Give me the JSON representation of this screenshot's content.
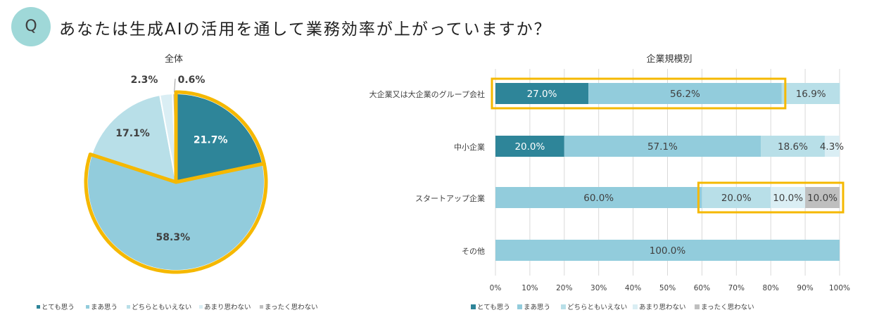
{
  "header": {
    "badge": "Q",
    "question": "あなたは生成AIの活用を通して業務効率が上がっていますか？"
  },
  "colors": {
    "c0": "#2e8599",
    "c1": "#92ccdc",
    "c2": "#b8dfe8",
    "c3": "#daeef4",
    "c4": "#bfbfbf",
    "highlight": "#f5b800"
  },
  "legend": [
    "とても思う",
    "まあ思う",
    "どちらともいえない",
    "あまり思わない",
    "まったく思わない"
  ],
  "chart_data": [
    {
      "type": "pie",
      "title": "全体",
      "categories": [
        "とても思う",
        "まあ思う",
        "どちらともいえない",
        "あまり思わない",
        "まったく思わない"
      ],
      "values": [
        21.7,
        58.3,
        17.1,
        2.3,
        0.6
      ],
      "labels": [
        "21.7%",
        "58.3%",
        "17.1%",
        "2.3%",
        "0.6%"
      ],
      "highlighted": [
        "とても思う",
        "まあ思う"
      ],
      "legend_position": "bottom-left"
    },
    {
      "type": "bar",
      "stacked": true,
      "orientation": "horizontal",
      "title": "企業規模別",
      "categories": [
        "大企業又は大企業のグループ会社",
        "中小企業",
        "スタートアップ企業",
        "その他"
      ],
      "series": [
        {
          "name": "とても思う",
          "values": [
            27.0,
            20.0,
            0,
            0
          ],
          "labels": [
            "27.0%",
            "20.0%",
            "",
            ""
          ]
        },
        {
          "name": "まあ思う",
          "values": [
            56.2,
            57.1,
            60.0,
            100.0
          ],
          "labels": [
            "56.2%",
            "57.1%",
            "60.0%",
            "100.0%"
          ]
        },
        {
          "name": "どちらともいえない",
          "values": [
            16.9,
            18.6,
            20.0,
            0
          ],
          "labels": [
            "16.9%",
            "18.6%",
            "20.0%",
            ""
          ]
        },
        {
          "name": "あまり思わない",
          "values": [
            0,
            4.3,
            10.0,
            0
          ],
          "labels": [
            "",
            "4.3%",
            "10.0%",
            ""
          ]
        },
        {
          "name": "まったく思わない",
          "values": [
            0,
            0,
            10.0,
            0
          ],
          "labels": [
            "",
            "",
            "10.0%",
            ""
          ]
        }
      ],
      "xlim": [
        0,
        100
      ],
      "xticks": [
        "0%",
        "10%",
        "20%",
        "30%",
        "40%",
        "50%",
        "60%",
        "70%",
        "80%",
        "90%",
        "100%"
      ],
      "grid": true,
      "highlight_ranges": [
        {
          "row": 0,
          "from": 0,
          "to": 83.2
        },
        {
          "row": 2,
          "from": 60.0,
          "to": 100.0
        }
      ],
      "legend_position": "bottom-left"
    }
  ]
}
